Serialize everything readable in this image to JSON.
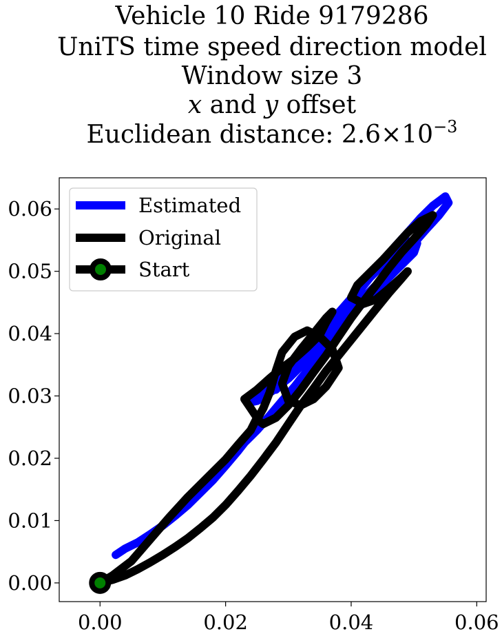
{
  "chart_data": {
    "type": "line",
    "title_lines": [
      "Vehicle 10 Ride 9179286",
      "UniTS time speed direction model",
      "Window size 3",
      "x and y offset",
      "Euclidean distance: 2.6×10",
      "−3"
    ],
    "title": {
      "line1": "Vehicle 10 Ride 9179286",
      "line2": "UniTS time speed direction model",
      "line3": "Window size 3",
      "line4_x": "x",
      "line4_and": " and ",
      "line4_y": "y",
      "line4_rest": " offset",
      "line5": "Euclidean distance: 2.6×10",
      "line5_exp": "−3"
    },
    "xlabel": "",
    "ylabel": "",
    "xlim": [
      -0.0065,
      0.0615
    ],
    "ylim": [
      -0.003,
      0.065
    ],
    "x_ticks": [
      0.0,
      0.02,
      0.04,
      0.06
    ],
    "x_tick_labels": [
      "0.00",
      "0.02",
      "0.04",
      "0.06"
    ],
    "y_ticks": [
      0.0,
      0.01,
      0.02,
      0.03,
      0.04,
      0.05,
      0.06
    ],
    "y_tick_labels": [
      "0.00",
      "0.01",
      "0.02",
      "0.03",
      "0.04",
      "0.05",
      "0.06"
    ],
    "grid": false,
    "legend_position": "top-left",
    "legend": [
      "Estimated",
      "Original",
      "Start"
    ],
    "series": [
      {
        "name": "Estimated",
        "color": "#0000ff",
        "x": [
          0.0025,
          0.004,
          0.006,
          0.008,
          0.01,
          0.012,
          0.014,
          0.016,
          0.018,
          0.02,
          0.022,
          0.023,
          0.025,
          0.027,
          0.029,
          0.031,
          0.032,
          0.034,
          0.035,
          0.036,
          0.038,
          0.039,
          0.04,
          0.041,
          0.043,
          0.045,
          0.047,
          0.049,
          0.051,
          0.053,
          0.055,
          0.0555,
          0.054,
          0.052,
          0.05,
          0.048,
          0.046,
          0.044,
          0.042,
          0.04,
          0.038,
          0.037,
          0.036,
          0.035,
          0.034,
          0.033,
          0.032,
          0.031,
          0.03,
          0.029,
          0.028,
          0.027,
          0.026,
          0.025,
          0.024,
          0.025,
          0.027,
          0.029,
          0.031,
          0.033,
          0.035,
          0.037,
          0.039,
          0.041,
          0.043,
          0.045,
          0.047,
          0.049,
          0.0505,
          0.05,
          0.048,
          0.046,
          0.044,
          0.042,
          0.04,
          0.038,
          0.036,
          0.034,
          0.032,
          0.03,
          0.028
        ],
        "y": [
          0.0045,
          0.0055,
          0.0065,
          0.0078,
          0.0092,
          0.0108,
          0.0125,
          0.0145,
          0.0165,
          0.0188,
          0.0212,
          0.0225,
          0.0245,
          0.0268,
          0.0292,
          0.0315,
          0.0328,
          0.0352,
          0.0368,
          0.038,
          0.0405,
          0.0425,
          0.0445,
          0.0465,
          0.049,
          0.0515,
          0.054,
          0.0562,
          0.0585,
          0.0605,
          0.062,
          0.061,
          0.059,
          0.0568,
          0.0545,
          0.052,
          0.0498,
          0.0478,
          0.0458,
          0.044,
          0.042,
          0.0405,
          0.0392,
          0.038,
          0.0368,
          0.0358,
          0.0348,
          0.0338,
          0.0328,
          0.032,
          0.0312,
          0.0305,
          0.0298,
          0.0292,
          0.029,
          0.0302,
          0.0318,
          0.0335,
          0.0355,
          0.0375,
          0.0398,
          0.0422,
          0.0445,
          0.0468,
          0.049,
          0.051,
          0.053,
          0.0548,
          0.0545,
          0.053,
          0.051,
          0.049,
          0.047,
          0.045,
          0.043,
          0.041,
          0.039,
          0.037,
          0.035,
          0.033,
          0.031
        ]
      },
      {
        "name": "Original",
        "color": "#000000",
        "x": [
          0.0,
          0.002,
          0.005,
          0.008,
          0.011,
          0.014,
          0.017,
          0.02,
          0.022,
          0.024,
          0.025,
          0.024,
          0.023,
          0.025,
          0.027,
          0.029,
          0.031,
          0.033,
          0.035,
          0.036,
          0.037,
          0.036,
          0.034,
          0.032,
          0.03,
          0.029,
          0.03,
          0.032,
          0.034,
          0.036,
          0.038,
          0.037,
          0.035,
          0.033,
          0.031,
          0.029,
          0.028,
          0.027,
          0.026,
          0.025,
          0.026,
          0.028,
          0.03,
          0.032,
          0.034,
          0.036,
          0.038,
          0.04,
          0.042,
          0.044,
          0.046,
          0.048,
          0.05,
          0.052,
          0.053,
          0.051,
          0.049,
          0.047,
          0.045,
          0.043,
          0.041,
          0.04,
          0.042,
          0.044,
          0.046,
          0.048,
          0.049,
          0.048,
          0.046,
          0.044,
          0.042,
          0.04,
          0.038,
          0.036,
          0.034,
          0.032,
          0.03,
          0.028,
          0.026,
          0.024,
          0.022,
          0.02,
          0.018,
          0.016,
          0.014,
          0.012,
          0.01,
          0.008,
          0.006,
          0.004,
          0.002,
          0.0
        ],
        "y": [
          0.0,
          0.0012,
          0.0035,
          0.007,
          0.0105,
          0.0138,
          0.0168,
          0.0198,
          0.0222,
          0.0245,
          0.0265,
          0.028,
          0.0295,
          0.031,
          0.0328,
          0.0345,
          0.036,
          0.0378,
          0.0398,
          0.0418,
          0.0435,
          0.0425,
          0.04,
          0.0375,
          0.0348,
          0.032,
          0.0292,
          0.0285,
          0.0295,
          0.0315,
          0.0345,
          0.0375,
          0.0395,
          0.0405,
          0.0395,
          0.037,
          0.034,
          0.0305,
          0.028,
          0.0262,
          0.0255,
          0.0265,
          0.0285,
          0.031,
          0.0338,
          0.0365,
          0.0395,
          0.0425,
          0.0452,
          0.0478,
          0.0505,
          0.053,
          0.0552,
          0.0575,
          0.059,
          0.058,
          0.0562,
          0.054,
          0.0518,
          0.0498,
          0.0478,
          0.0458,
          0.0448,
          0.0455,
          0.0472,
          0.049,
          0.05,
          0.0488,
          0.0465,
          0.044,
          0.0415,
          0.039,
          0.0365,
          0.034,
          0.0312,
          0.0285,
          0.0255,
          0.0225,
          0.0198,
          0.0172,
          0.0148,
          0.0125,
          0.0105,
          0.0088,
          0.0072,
          0.0058,
          0.0045,
          0.0033,
          0.0022,
          0.0012,
          0.0005,
          0.0
        ]
      },
      {
        "name": "Start",
        "color": "#000000",
        "marker_face": "#008000",
        "x": [
          0.0
        ],
        "y": [
          0.0
        ]
      }
    ]
  }
}
